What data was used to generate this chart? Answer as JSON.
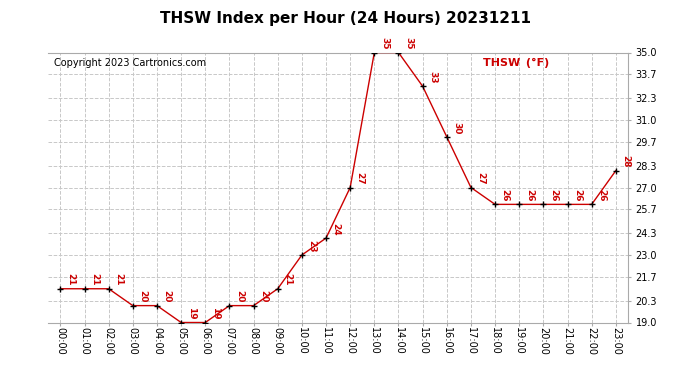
{
  "title": "THSW Index per Hour (24 Hours) 20231211",
  "copyright": "Copyright 2023 Cartronics.com",
  "legend_label": "THSW (°F)",
  "hours": [
    "00:00",
    "01:00",
    "02:00",
    "03:00",
    "04:00",
    "05:00",
    "06:00",
    "07:00",
    "08:00",
    "09:00",
    "10:00",
    "11:00",
    "12:00",
    "13:00",
    "14:00",
    "15:00",
    "16:00",
    "17:00",
    "18:00",
    "19:00",
    "20:00",
    "21:00",
    "22:00",
    "23:00"
  ],
  "values": [
    21,
    21,
    21,
    20,
    20,
    19,
    19,
    20,
    20,
    21,
    23,
    24,
    27,
    35,
    35,
    33,
    30,
    27,
    26,
    26,
    26,
    26,
    26,
    28
  ],
  "line_color": "#cc0000",
  "marker_color": "#000000",
  "label_color": "#cc0000",
  "background_color": "#ffffff",
  "grid_color": "#c8c8c8",
  "ylim_min": 19.0,
  "ylim_max": 35.0,
  "yticks": [
    19.0,
    20.3,
    21.7,
    23.0,
    24.3,
    25.7,
    27.0,
    28.3,
    29.7,
    31.0,
    32.3,
    33.7,
    35.0
  ],
  "title_fontsize": 11,
  "copyright_fontsize": 7,
  "legend_fontsize": 8,
  "label_fontsize": 6.5,
  "tick_fontsize": 7
}
